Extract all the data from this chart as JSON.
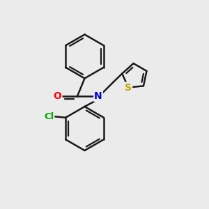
{
  "background_color": "#ebebeb",
  "bond_color": "#1a1a1a",
  "bond_width": 1.8,
  "atom_colors": {
    "O": "#ff0000",
    "N": "#0000cc",
    "S": "#bbaa00",
    "Cl": "#00aa00",
    "C": "#1a1a1a"
  },
  "figsize": [
    3.0,
    3.0
  ],
  "dpi": 100,
  "xlim": [
    0,
    10
  ],
  "ylim": [
    0,
    10
  ]
}
